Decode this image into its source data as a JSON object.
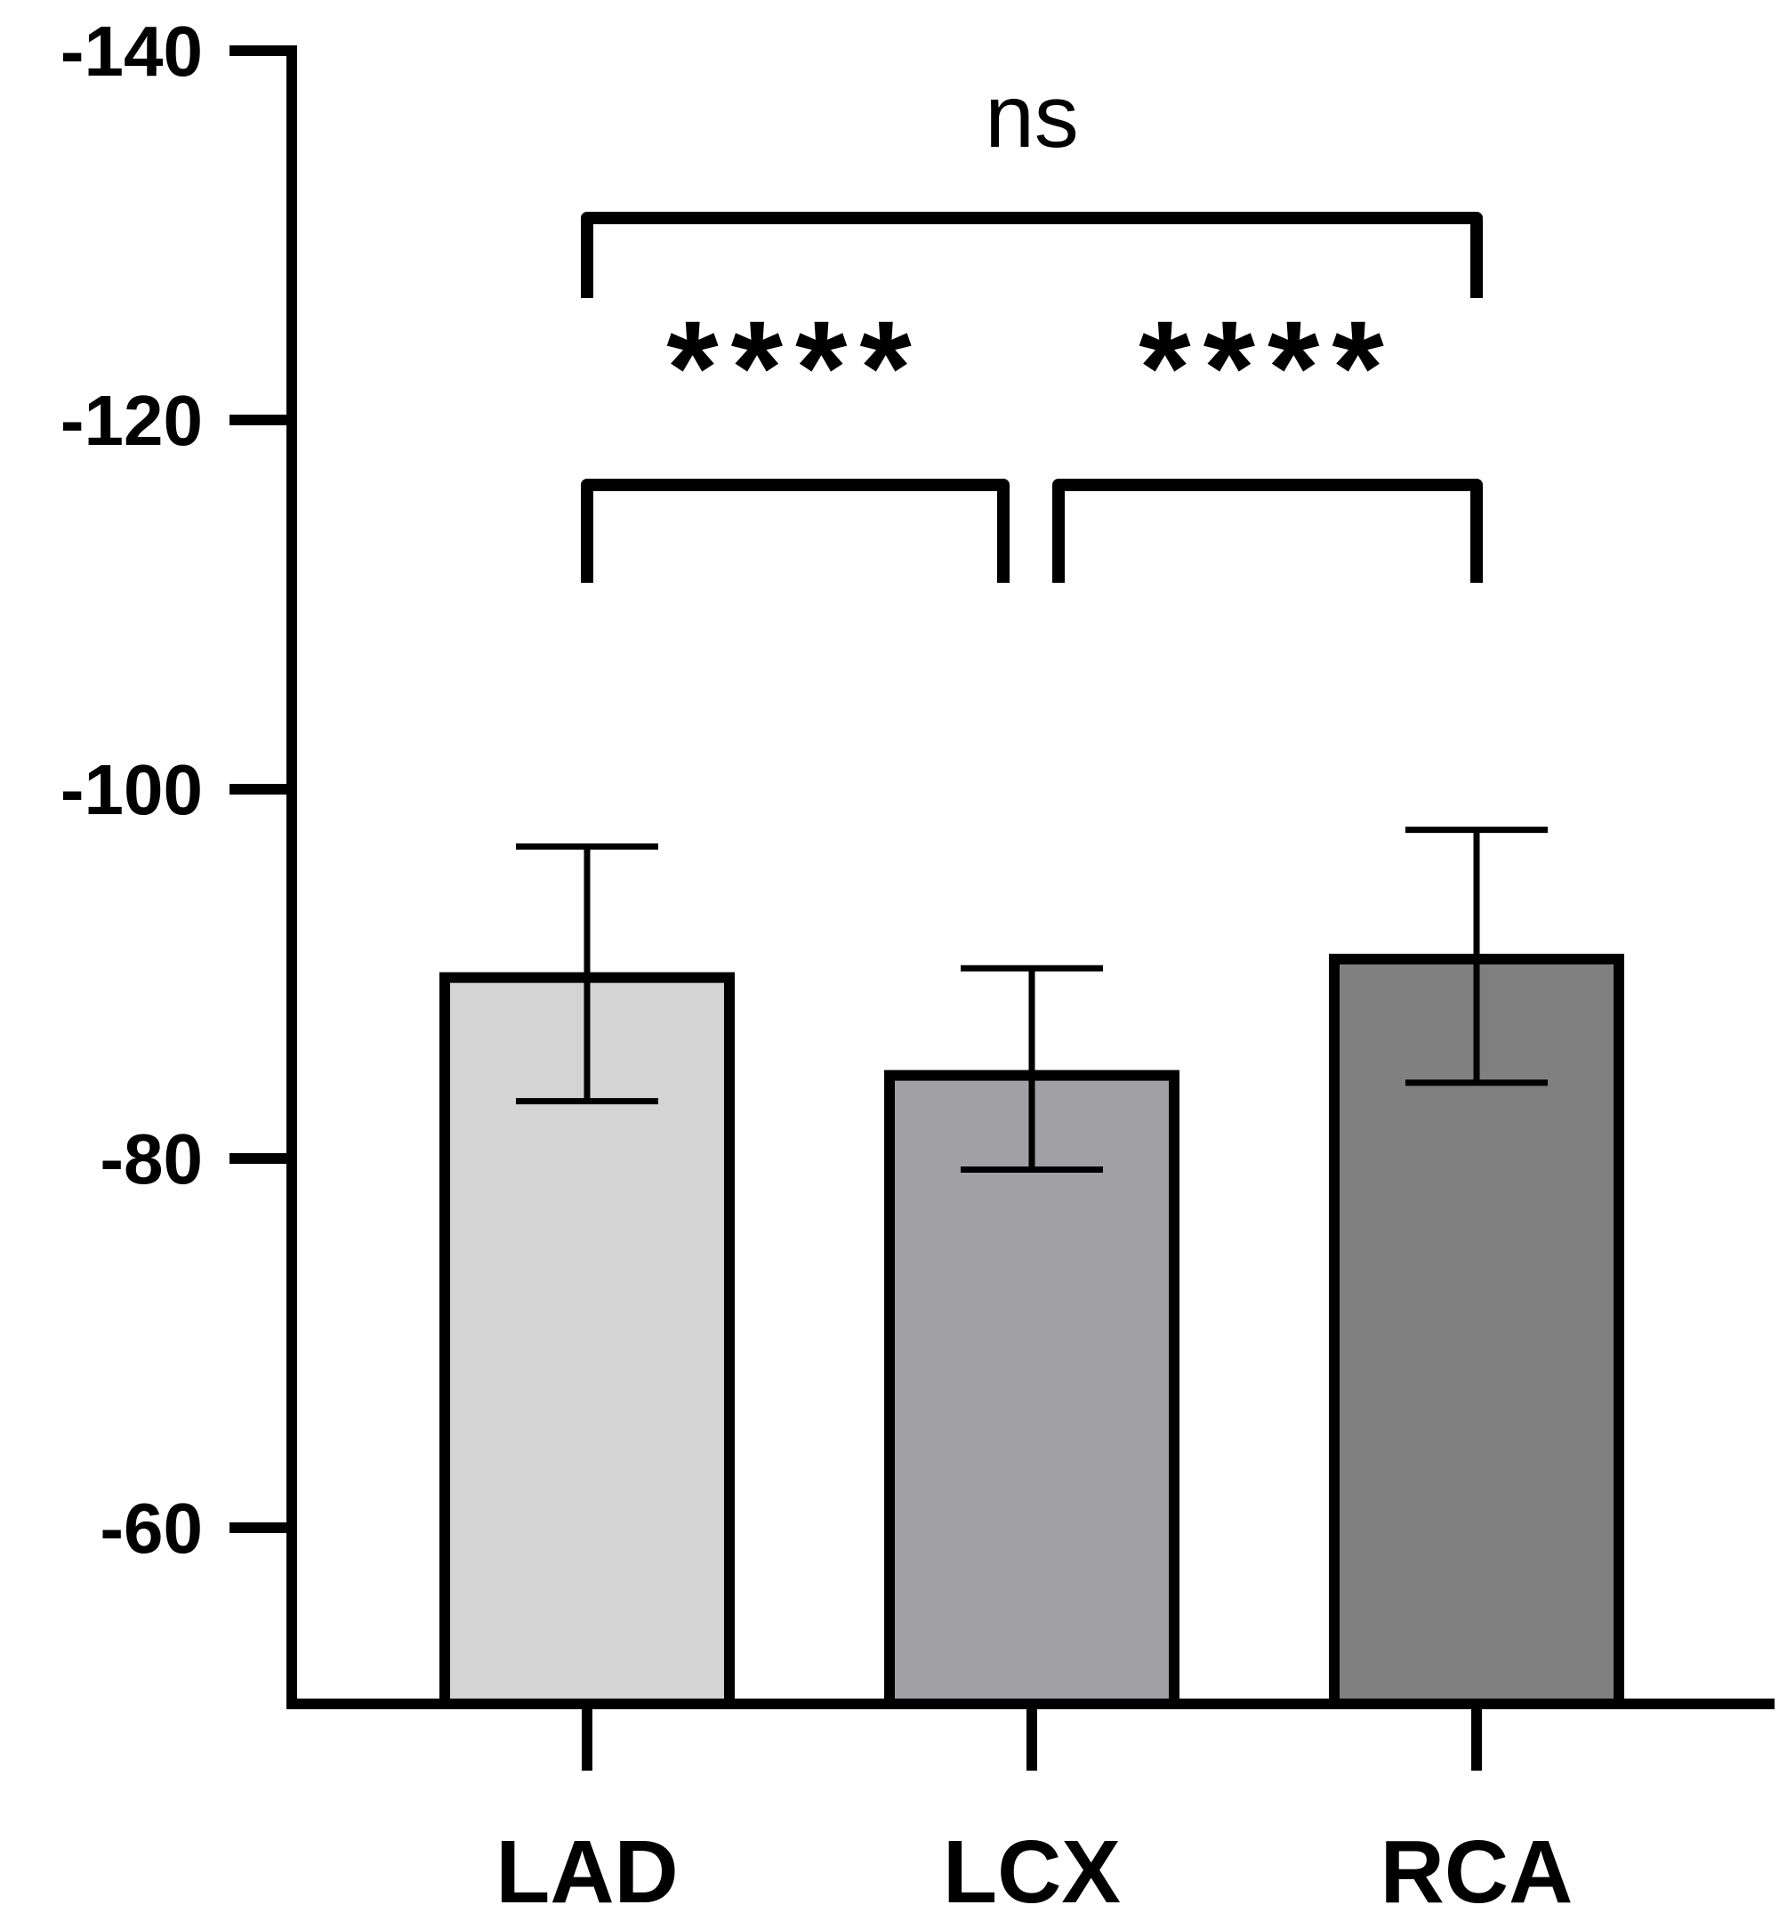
{
  "chart_data": {
    "type": "bar",
    "title": "",
    "xlabel": "",
    "ylabel": "",
    "categories": [
      "LAD",
      "LCX",
      "RCA"
    ],
    "values": [
      -89.8,
      -84.5,
      -90.8
    ],
    "error_upper": [
      -96.9,
      -90.3,
      -97.8
    ],
    "error_lower": [
      -83.1,
      -79.4,
      -84.1
    ],
    "bar_colors": [
      "#d4d4d4",
      "#a0a0a5",
      "#808080"
    ],
    "ylim": [
      -51,
      -140
    ],
    "yticks": [
      -60,
      -80,
      -100,
      -120,
      -140
    ],
    "ytick_labels": [
      "-60",
      "-80",
      "-100",
      "-120",
      "-140"
    ],
    "grid": false,
    "significance": [
      {
        "from": "LAD",
        "to": "LCX",
        "label": "****"
      },
      {
        "from": "LCX",
        "to": "RCA",
        "label": "****"
      },
      {
        "from": "LAD",
        "to": "RCA",
        "label": "ns"
      }
    ]
  }
}
